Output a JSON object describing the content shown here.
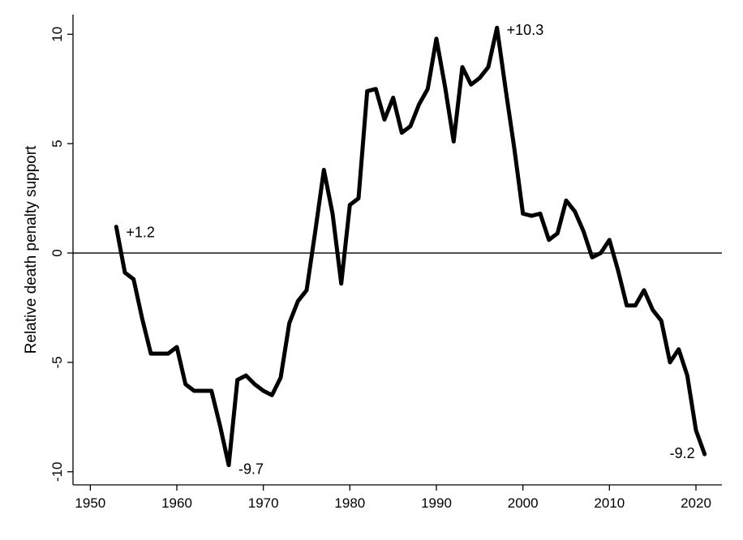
{
  "chart_data": {
    "type": "line",
    "title": "",
    "xlabel": "",
    "ylabel": "Relative death penalty support",
    "xlim": [
      1948,
      2023
    ],
    "ylim": [
      -10.6,
      10.9
    ],
    "x_ticks": [
      1950,
      1960,
      1970,
      1980,
      1990,
      2000,
      2010,
      2020
    ],
    "y_ticks": [
      10,
      5,
      0,
      -5,
      -10
    ],
    "reference_line_y": 0,
    "grid": false,
    "legend": "none",
    "series": [
      {
        "color": "#000000",
        "x": [
          1953,
          1954,
          1955,
          1956,
          1957,
          1958,
          1959,
          1960,
          1961,
          1962,
          1963,
          1964,
          1965,
          1966,
          1967,
          1968,
          1969,
          1970,
          1971,
          1972,
          1973,
          1974,
          1975,
          1976,
          1977,
          1978,
          1979,
          1980,
          1981,
          1982,
          1983,
          1984,
          1985,
          1986,
          1987,
          1988,
          1989,
          1990,
          1991,
          1992,
          1993,
          1994,
          1995,
          1996,
          1997,
          1998,
          1999,
          2000,
          2001,
          2002,
          2003,
          2004,
          2005,
          2006,
          2007,
          2008,
          2009,
          2010,
          2011,
          2012,
          2013,
          2014,
          2015,
          2016,
          2017,
          2018,
          2019,
          2020,
          2021
        ],
        "y": [
          1.2,
          -0.9,
          -1.2,
          -3.0,
          -4.6,
          -4.6,
          -4.6,
          -4.3,
          -6.0,
          -6.3,
          -6.3,
          -6.3,
          -7.9,
          -9.7,
          -5.8,
          -5.6,
          -6.0,
          -6.3,
          -6.5,
          -5.7,
          -3.2,
          -2.2,
          -1.7,
          1.0,
          3.8,
          1.8,
          -1.4,
          2.2,
          2.5,
          7.4,
          7.5,
          6.1,
          7.1,
          5.5,
          5.8,
          6.8,
          7.5,
          9.8,
          7.6,
          5.1,
          8.5,
          7.7,
          8.0,
          8.5,
          10.3,
          7.5,
          4.8,
          1.8,
          1.7,
          1.8,
          0.6,
          0.9,
          2.4,
          1.9,
          1.0,
          -0.2,
          0.0,
          0.6,
          -0.8,
          -2.4,
          -2.4,
          -1.7,
          -2.6,
          -3.1,
          -5.0,
          -4.4,
          -5.6,
          -8.1,
          -9.2
        ]
      }
    ],
    "annotations": [
      {
        "text": "+1.2",
        "x": 1953,
        "y": 1.2
      },
      {
        "text": "-9.7",
        "x": 1966,
        "y": -9.7
      },
      {
        "text": "+10.3",
        "x": 1997,
        "y": 10.3
      },
      {
        "text": "-9.2",
        "x": 2021,
        "y": -9.2
      }
    ]
  }
}
